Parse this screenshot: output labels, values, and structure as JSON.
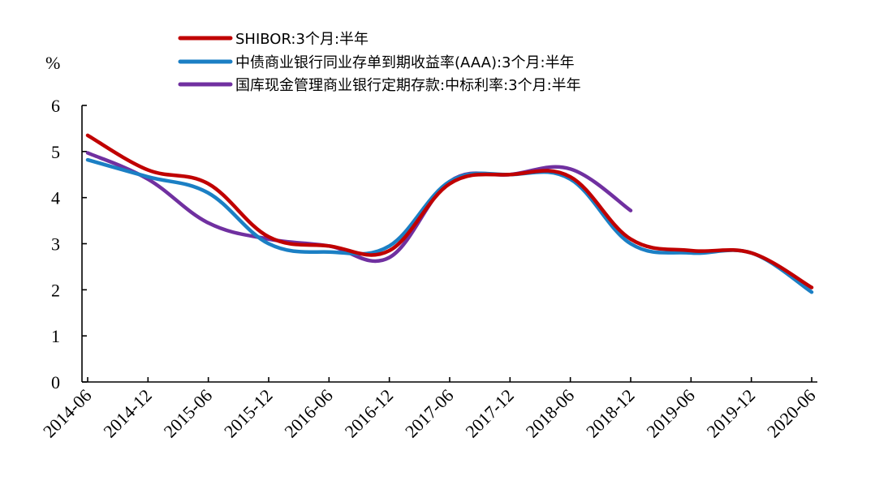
{
  "chart_data": {
    "type": "line",
    "ylabel": "%",
    "ylim": [
      0,
      6
    ],
    "yticks": [
      "0",
      "1",
      "2",
      "3",
      "4",
      "5",
      "6"
    ],
    "xticks": [
      "2014-06",
      "2014-12",
      "2015-06",
      "2015-12",
      "2016-06",
      "2016-12",
      "2017-06",
      "2017-12",
      "2018-06",
      "2018-12",
      "2019-06",
      "2019-12",
      "2020-06"
    ],
    "x": [
      0,
      1,
      2,
      3,
      4,
      5,
      6,
      7,
      8,
      9,
      10,
      11,
      12
    ],
    "legend_position": "top",
    "grid": false,
    "series": [
      {
        "name": "SHIBOR:3个月:半年",
        "color": "#c00000",
        "values": [
          5.35,
          4.6,
          4.3,
          3.15,
          2.95,
          2.85,
          4.3,
          4.5,
          4.45,
          3.1,
          2.85,
          2.8,
          2.05
        ]
      },
      {
        "name": "中债商业银行同业存单到期收益率(AAA):3个月:半年",
        "color": "#1b7fc4",
        "values": [
          4.82,
          4.45,
          4.1,
          3.0,
          2.82,
          2.95,
          4.35,
          4.5,
          4.4,
          3.0,
          2.8,
          2.8,
          1.95
        ]
      },
      {
        "name": "国库现金管理商业银行定期存款:中标利率:3个月:半年",
        "color": "#7030a0",
        "values": [
          4.97,
          4.4,
          3.45,
          3.1,
          2.95,
          2.7,
          4.35,
          4.5,
          4.62,
          3.72,
          null,
          null,
          null
        ]
      }
    ]
  }
}
